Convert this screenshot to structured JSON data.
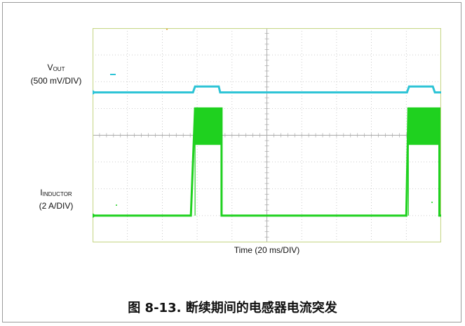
{
  "chart_data": {
    "type": "line",
    "title": "",
    "xlabel": "Time (20 ms/DIV)",
    "grid": true,
    "x_divisions": 10,
    "y_divisions": 8,
    "series": [
      {
        "name": "VOUT",
        "name_main": "V",
        "name_sub": "OUT",
        "scale_label": "(500 mV/DIV)",
        "color": "#2ec4d6",
        "x": [
          0,
          2.88,
          2.94,
          3.62,
          3.66,
          9.02,
          9.08,
          9.76,
          9.82,
          13.5
        ],
        "y": [
          0,
          0,
          0.22,
          0.22,
          0,
          0,
          0.22,
          0.22,
          0,
          0
        ]
      },
      {
        "name": "INDUCTOR",
        "name_main": "I",
        "name_sub": "INDUCTOR",
        "scale_label": "(2 A/DIV)",
        "color": "#1fd11f",
        "x": [
          0,
          2.82,
          2.94,
          2.94,
          3.7,
          3.7,
          3.85,
          9.0,
          9.06,
          9.06,
          9.95,
          9.95,
          10.04,
          13.5
        ],
        "y": [
          0,
          0,
          4.0,
          4.0,
          4.0,
          0,
          0,
          0,
          4.0,
          4.0,
          4.0,
          0,
          0,
          0
        ]
      }
    ]
  },
  "caption": "图 8-13. 断续期间的电感器电流突发"
}
